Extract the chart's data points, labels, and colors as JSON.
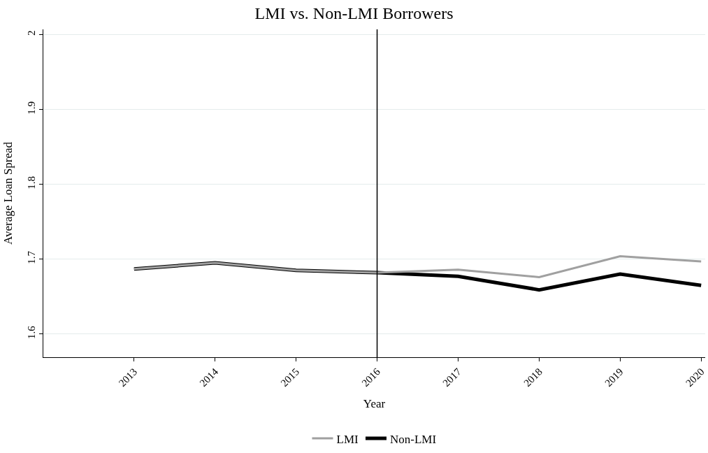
{
  "chart_data": {
    "type": "line",
    "title": "LMI vs. Non-LMI Borrowers",
    "xlabel": "Year",
    "ylabel": "Average Loan Spread",
    "x": [
      2013,
      2014,
      2015,
      2016,
      2017,
      2018,
      2019,
      2020
    ],
    "series": [
      {
        "name": "LMI",
        "color": "#a0a0a0",
        "values": [
          1.687,
          1.695,
          1.685,
          1.682,
          1.686,
          1.676,
          1.704,
          1.697
        ]
      },
      {
        "name": "Non-LMI",
        "color": "#000000",
        "values": [
          1.687,
          1.695,
          1.685,
          1.682,
          1.677,
          1.659,
          1.68,
          1.665
        ]
      }
    ],
    "xlim": [
      2011.88,
      2020.05
    ],
    "xticks": [
      2013,
      2014,
      2015,
      2016,
      2017,
      2018,
      2019,
      2020
    ],
    "ylim": [
      1.569,
      2.007
    ],
    "yticks": [
      1.6,
      1.7,
      1.8,
      1.9,
      2
    ],
    "ref_lines": [
      {
        "axis": "x",
        "value": 2016,
        "color": "#000000"
      }
    ],
    "grid": "y",
    "legend": "bottom",
    "marker": "none",
    "line_style": "solid"
  }
}
